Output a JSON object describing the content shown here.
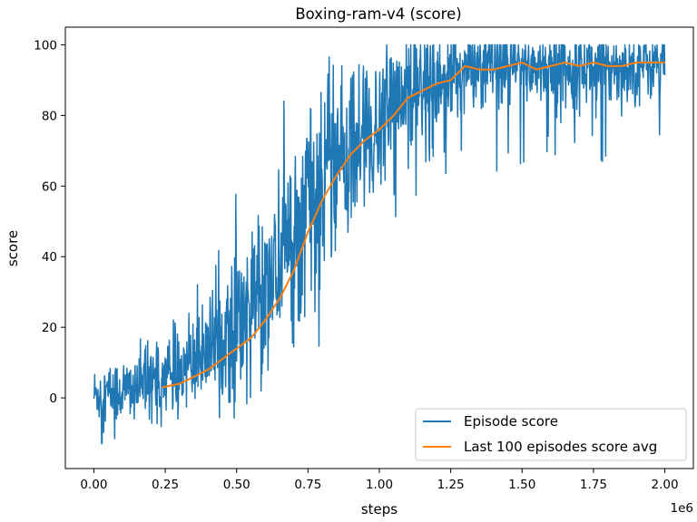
{
  "chart_data": {
    "type": "line",
    "title": "Boxing-ram-v4 (score)",
    "xlabel": "steps",
    "ylabel": "score",
    "x_offset_label": "1e6",
    "xlim": [
      -0.1,
      2.1
    ],
    "ylim": [
      -20,
      105
    ],
    "x_ticks": [
      0.0,
      0.25,
      0.5,
      0.75,
      1.0,
      1.25,
      1.5,
      1.75,
      2.0
    ],
    "x_tick_labels": [
      "0.00",
      "0.25",
      "0.50",
      "0.75",
      "1.00",
      "1.25",
      "1.50",
      "1.75",
      "2.00"
    ],
    "y_ticks": [
      0,
      20,
      40,
      60,
      80,
      100
    ],
    "y_tick_labels": [
      "0",
      "20",
      "40",
      "60",
      "80",
      "100"
    ],
    "grid": false,
    "legend_position": "lower-right",
    "series": [
      {
        "name": "Episode score",
        "color": "#1f77b4",
        "trend": [
          [
            0.0,
            1
          ],
          [
            0.1,
            2
          ],
          [
            0.2,
            4
          ],
          [
            0.3,
            8
          ],
          [
            0.4,
            13
          ],
          [
            0.5,
            20
          ],
          [
            0.6,
            32
          ],
          [
            0.7,
            46
          ],
          [
            0.8,
            60
          ],
          [
            0.9,
            70
          ],
          [
            1.0,
            77
          ],
          [
            1.1,
            84
          ],
          [
            1.2,
            90
          ],
          [
            1.3,
            93
          ],
          [
            1.4,
            94
          ],
          [
            1.5,
            94
          ],
          [
            1.6,
            94
          ],
          [
            1.7,
            94
          ],
          [
            1.8,
            94
          ],
          [
            1.9,
            94
          ],
          [
            2.0,
            95
          ]
        ],
        "spread": [
          [
            0.0,
            4
          ],
          [
            0.3,
            6
          ],
          [
            0.5,
            10
          ],
          [
            0.7,
            14
          ],
          [
            0.9,
            12
          ],
          [
            1.1,
            10
          ],
          [
            1.3,
            6
          ],
          [
            2.0,
            5
          ]
        ],
        "points_min_max": [
          -14,
          100
        ]
      },
      {
        "name": "Last 100 episodes score avg",
        "color": "#ff7f0e",
        "x": [
          0.24,
          0.3,
          0.35,
          0.4,
          0.45,
          0.5,
          0.55,
          0.6,
          0.65,
          0.7,
          0.75,
          0.8,
          0.85,
          0.9,
          0.95,
          1.0,
          1.05,
          1.1,
          1.15,
          1.2,
          1.25,
          1.3,
          1.35,
          1.4,
          1.45,
          1.5,
          1.55,
          1.6,
          1.65,
          1.7,
          1.75,
          1.8,
          1.85,
          1.9,
          1.95,
          2.0
        ],
        "y": [
          3,
          4,
          6,
          8,
          11,
          14,
          17,
          22,
          28,
          36,
          47,
          56,
          63,
          69,
          73,
          76,
          80,
          85,
          87,
          89,
          90,
          94,
          93,
          93,
          94,
          95,
          93,
          94,
          95,
          94,
          95,
          94,
          94,
          95,
          95,
          95
        ]
      }
    ]
  }
}
